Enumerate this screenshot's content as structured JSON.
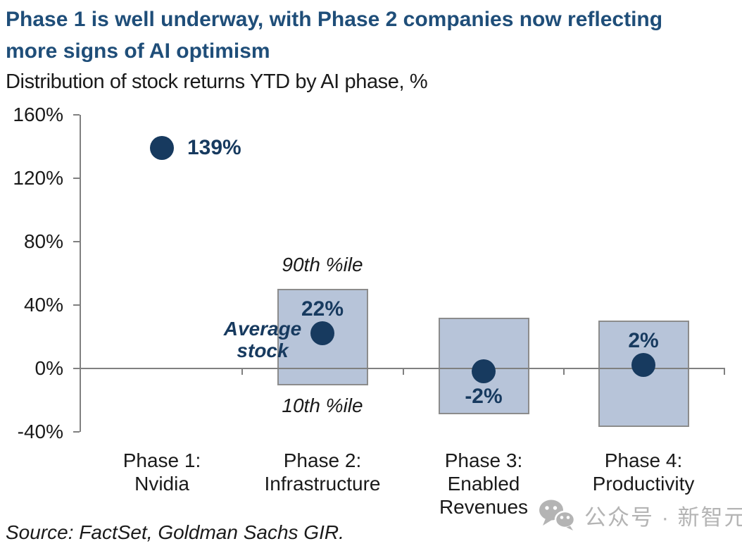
{
  "header": {
    "title_lines": [
      "Phase 1 is well underway, with Phase 2 companies now reflecting",
      "more signs of AI optimism"
    ],
    "subtitle": "Distribution of stock returns YTD by AI phase, %"
  },
  "chart_data": {
    "type": "scatter",
    "title": "Phase 1 is well underway, with Phase 2 companies now reflecting more signs of AI optimism",
    "subtitle": "Distribution of stock returns YTD by AI phase, %",
    "categories": [
      "Phase 1:\nNvidia",
      "Phase 2:\nInfrastructure",
      "Phase 3:\nEnabled\nRevenues",
      "Phase 4:\nProductivity"
    ],
    "series": [
      {
        "name": "Average stock",
        "type": "point",
        "values": [
          139,
          22,
          -2,
          2
        ],
        "labels": [
          "139%",
          "22%",
          "-2%",
          "2%"
        ],
        "label_positions": [
          "right",
          "above",
          "below",
          "above"
        ]
      },
      {
        "name": "10th-90th percentile range",
        "type": "range",
        "ranges": [
          null,
          [
            -11,
            50
          ],
          [
            -29,
            32
          ],
          [
            -37,
            30
          ]
        ]
      }
    ],
    "ylim": [
      -40,
      160
    ],
    "ytick_values": [
      160,
      120,
      80,
      40,
      0,
      -40
    ],
    "ytick_labels": [
      "160%",
      "120%",
      "80%",
      "40%",
      "0%",
      "-40%"
    ],
    "grid": false,
    "legend": "none",
    "annotations": {
      "p90": "90th %ile",
      "p10": "10th %ile",
      "average_stock": "Average\nstock"
    },
    "colors": {
      "point": "#173a5f",
      "range_fill": "#b7c4d9",
      "range_border": "#8c8c8c",
      "axis": "#808080",
      "label": "#173a5f"
    }
  },
  "footer": {
    "source": "Source: FactSet, Goldman Sachs GIR."
  },
  "watermark": {
    "icon": "wechat-icon",
    "text": "公众号 · 新智元",
    "color": "#b4b4b4"
  },
  "colors": {
    "title": "#1f4e79",
    "text": "#1a1a1a"
  }
}
